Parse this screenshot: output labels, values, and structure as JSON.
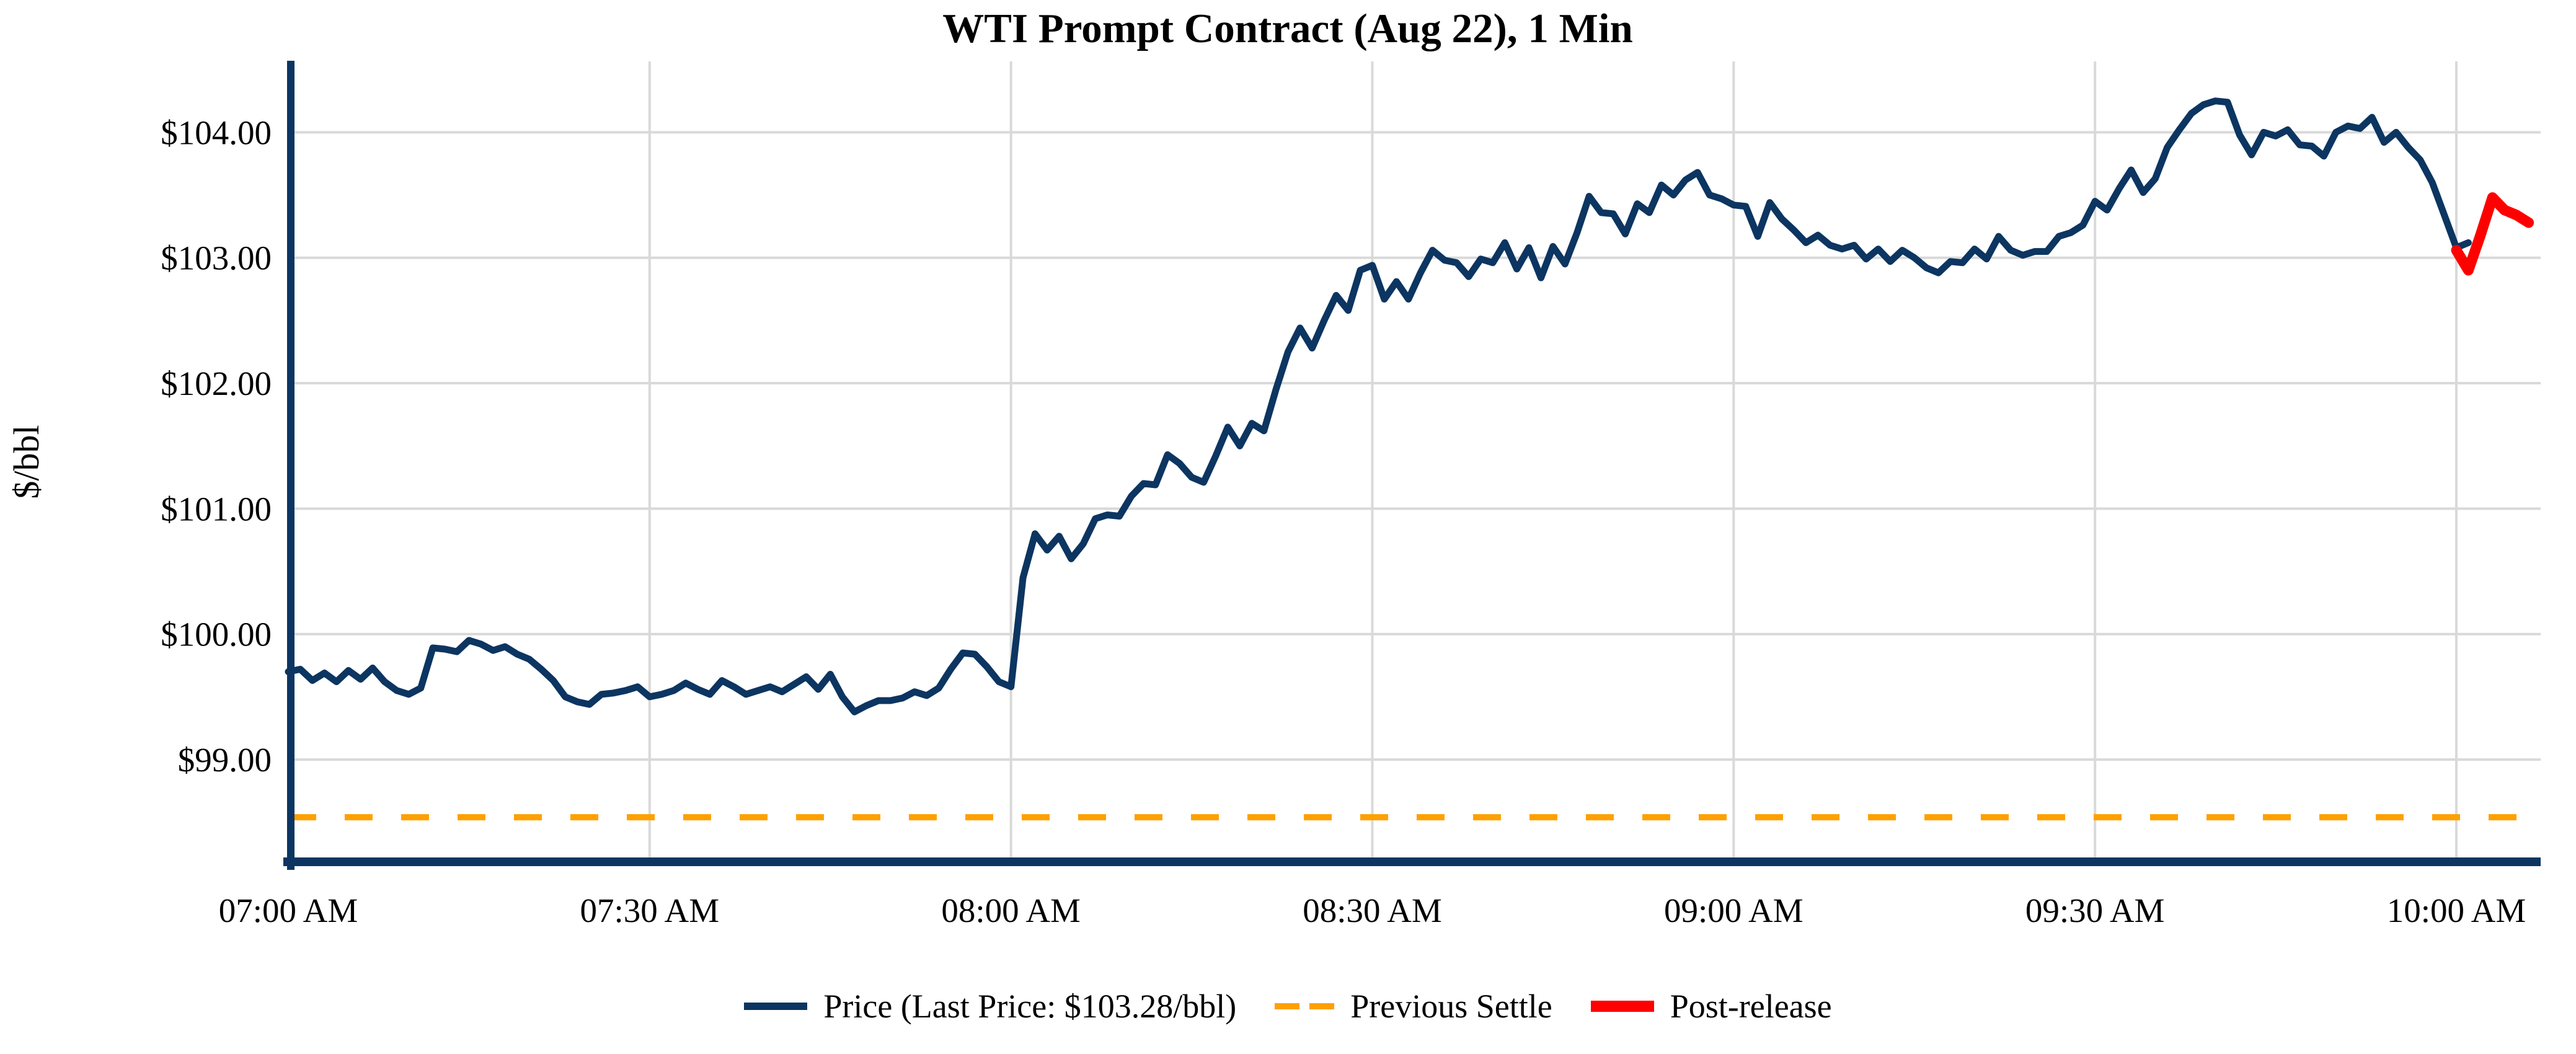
{
  "chart_data": {
    "type": "line",
    "title": "WTI Prompt Contract (Aug 22), 1 Min",
    "ylabel": "$/bbl",
    "grid": true,
    "legend_position": "bottom-center",
    "x_axis": {
      "start_time": "07:00 AM",
      "tick_minutes": [
        0,
        30,
        60,
        90,
        120,
        150,
        180
      ],
      "tick_labels": [
        "07:00 AM",
        "07:30 AM",
        "08:00 AM",
        "08:30 AM",
        "09:00 AM",
        "09:30 AM",
        "10:00 AM"
      ],
      "xlim_minutes": [
        0,
        187
      ]
    },
    "y_axis": {
      "tick_values": [
        99,
        100,
        101,
        102,
        103,
        104
      ],
      "tick_labels": [
        "$99.00",
        "$100.00",
        "$101.00",
        "$102.00",
        "$103.00",
        "$104.00"
      ],
      "ylim": [
        98.185,
        104.585
      ]
    },
    "series": [
      {
        "name": "Price (Last Price: $103.28/bbl)",
        "color": "#0C3561",
        "start_minute": 0,
        "step_minutes": 1,
        "stroke_width": 11,
        "values": [
          99.7,
          99.72,
          99.63,
          99.69,
          99.62,
          99.71,
          99.64,
          99.73,
          99.62,
          99.55,
          99.52,
          99.57,
          99.89,
          99.88,
          99.86,
          99.95,
          99.92,
          99.87,
          99.9,
          99.84,
          99.8,
          99.72,
          99.63,
          99.5,
          99.46,
          99.44,
          99.52,
          99.53,
          99.55,
          99.58,
          99.5,
          99.52,
          99.55,
          99.61,
          99.56,
          99.52,
          99.63,
          99.58,
          99.52,
          99.55,
          99.58,
          99.54,
          99.6,
          99.66,
          99.56,
          99.68,
          99.5,
          99.38,
          99.43,
          99.47,
          99.47,
          99.49,
          99.54,
          99.51,
          99.57,
          99.72,
          99.85,
          99.84,
          99.74,
          99.62,
          99.58,
          100.45,
          100.8,
          100.67,
          100.78,
          100.6,
          100.72,
          100.92,
          100.95,
          100.94,
          101.1,
          101.2,
          101.19,
          101.43,
          101.36,
          101.25,
          101.21,
          101.42,
          101.65,
          101.5,
          101.68,
          101.62,
          101.95,
          102.25,
          102.44,
          102.28,
          102.5,
          102.7,
          102.58,
          102.9,
          102.94,
          102.67,
          102.81,
          102.67,
          102.88,
          103.06,
          102.98,
          102.96,
          102.85,
          102.99,
          102.96,
          103.12,
          102.91,
          103.08,
          102.84,
          103.09,
          102.95,
          103.2,
          103.49,
          103.36,
          103.35,
          103.19,
          103.43,
          103.36,
          103.58,
          103.5,
          103.62,
          103.68,
          103.5,
          103.47,
          103.42,
          103.41,
          103.17,
          103.44,
          103.31,
          103.22,
          103.12,
          103.18,
          103.1,
          103.07,
          103.1,
          102.99,
          103.07,
          102.97,
          103.06,
          103.0,
          102.92,
          102.88,
          102.97,
          102.96,
          103.07,
          102.99,
          103.17,
          103.06,
          103.02,
          103.05,
          103.05,
          103.17,
          103.2,
          103.26,
          103.45,
          103.38,
          103.55,
          103.7,
          103.52,
          103.63,
          103.88,
          104.02,
          104.15,
          104.22,
          104.25,
          104.24,
          103.98,
          103.82,
          104.0,
          103.97,
          104.02,
          103.9,
          103.89,
          103.81,
          104.0,
          104.05,
          104.03,
          104.12,
          103.92,
          104.0,
          103.88,
          103.78,
          103.6,
          103.34,
          103.08,
          103.12
        ]
      },
      {
        "name": "Post-release",
        "color": "#FF0000",
        "start_minute": 180,
        "step_minutes": 1,
        "stroke_width": 17,
        "values": [
          103.06,
          102.9,
          103.18,
          103.48,
          103.38,
          103.34,
          103.28
        ]
      }
    ],
    "previous_settle": {
      "name": "Previous Settle",
      "value": 98.54,
      "color": "#FFA000",
      "dash": [
        45,
        46
      ],
      "stroke_width": 10
    },
    "last_price": 103.28,
    "colors": {
      "grid": "#D9D9D9",
      "axis": "#0C3561",
      "text": "#000000"
    }
  },
  "legend": {
    "price_label": "Price (Last Price: $103.28/bbl)",
    "settle_label": "Previous Settle",
    "post_label": "Post-release"
  }
}
